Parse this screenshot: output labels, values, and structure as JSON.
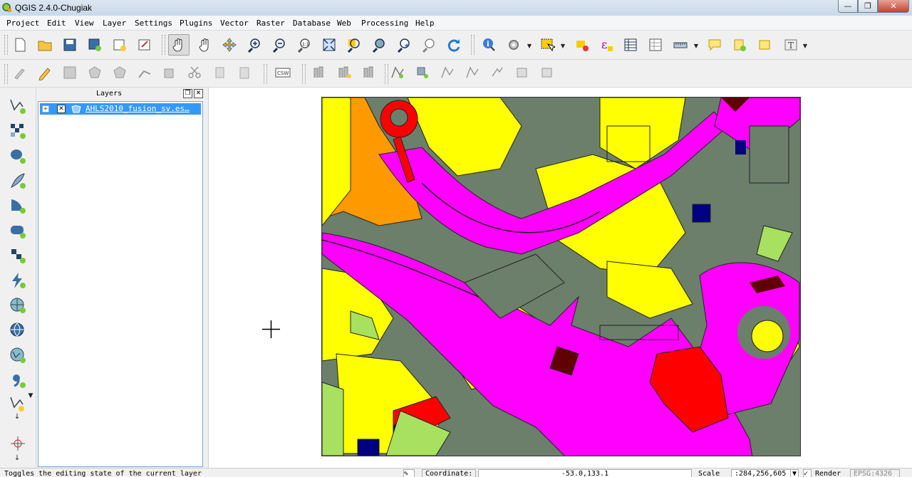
{
  "window": {
    "title": "QGIS 2.4.0-Chugiak",
    "min_icon": "minimize-icon",
    "max_icon": "maximize-icon",
    "close_icon": "close-icon"
  },
  "menubar": {
    "items": [
      "Project",
      "Edit",
      "View",
      "Layer",
      "Settings",
      "Plugins",
      "Vector",
      "Raster",
      "Database",
      "Web",
      "Processing",
      "Help"
    ]
  },
  "layers_panel": {
    "title": "Layers",
    "layers": [
      {
        "name": "AHLS2010_fusion_sv.es…",
        "visible": true
      }
    ]
  },
  "statusbar": {
    "message": "Toggles the editing state of the current layer",
    "coordinate_label": "Coordinate:",
    "coordinate_value": "-53.0,133.1",
    "scale_label": "Scale",
    "scale_value": ":284,256,605",
    "render_label": "Render",
    "crs": "EPSG:4326"
  },
  "colors": {
    "dark_green": "#6b7f6a",
    "magenta": "#ff00ff",
    "yellow": "#ffff00",
    "orange": "#ff9900",
    "red": "#ff0000",
    "navy": "#000080",
    "light_green": "#a8e060",
    "dark_red": "#600000"
  }
}
